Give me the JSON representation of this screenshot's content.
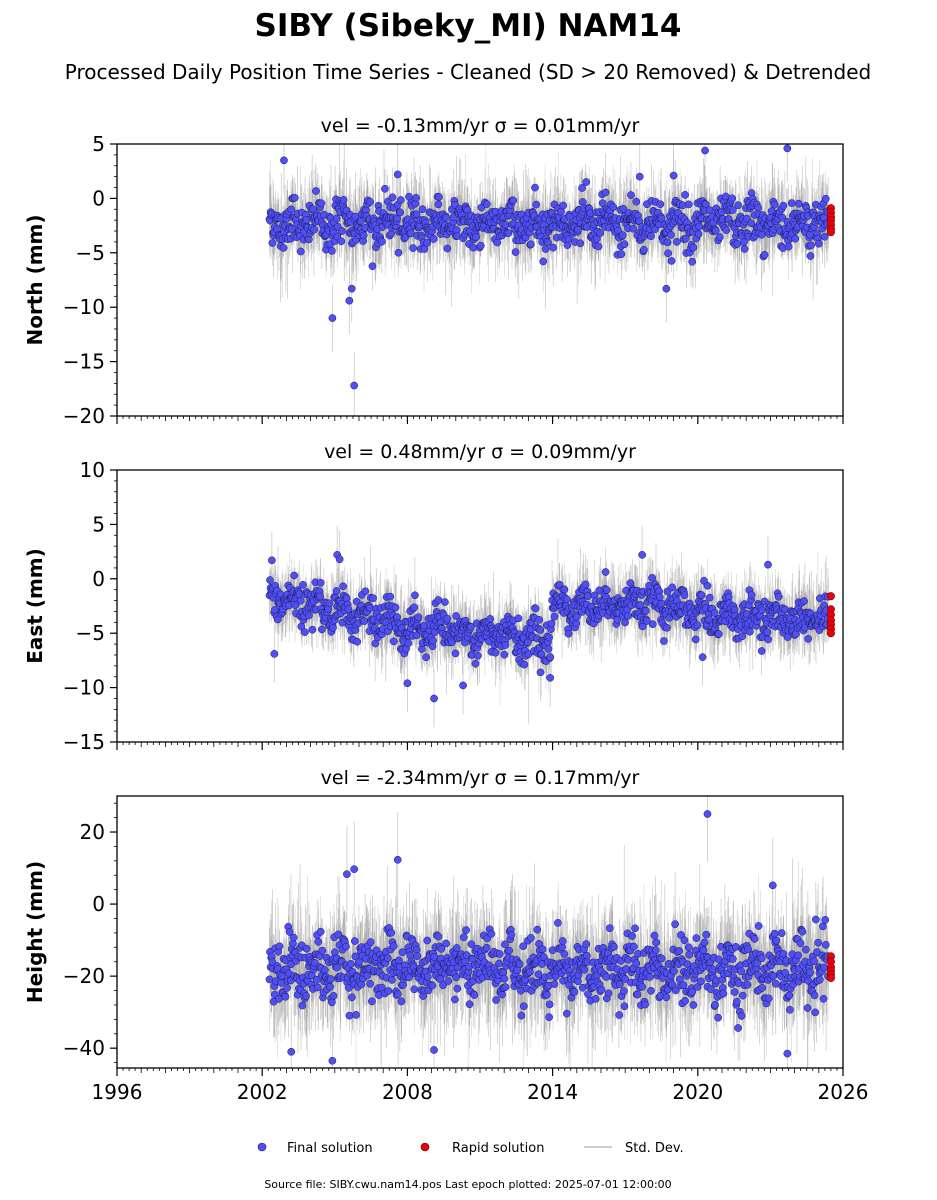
{
  "title": "SIBY (Sibeky_MI) NAM14",
  "subtitle": "Processed Daily Position Time Series - Cleaned (SD > 20 Removed) & Detrended",
  "footer": "Source file: SIBY.cwu.nam14.pos  Last epoch plotted: 2025-07-01 12:00:00",
  "legend": {
    "placement": "bottom-center",
    "entries": [
      {
        "label": "Final solution",
        "color": "#4f4ff5"
      },
      {
        "label": "Rapid solution",
        "color": "#e8000b"
      },
      {
        "label": "Std. Dev.",
        "color": "#bdbdbd"
      }
    ]
  },
  "colors": {
    "final": "#4f4ff5",
    "final_edge": "#1a1a4d",
    "rapid": "#e8000b",
    "sd": "#bdbdbd"
  },
  "chart_data": [
    {
      "type": "scatter",
      "panel": "north",
      "ylabel": "North (mm)",
      "annotation": "vel = -0.13mm/yr   σ = 0.01mm/yr",
      "xlim": [
        1996,
        2026
      ],
      "ylim": [
        -20,
        5
      ],
      "yticks": [
        5,
        0,
        -5,
        -10,
        -15,
        -20
      ],
      "xticks": [
        1996,
        2002,
        2008,
        2014,
        2020,
        2026
      ],
      "data_start": 2002.3,
      "data_end": 2025.4,
      "typical_mean": -2.3,
      "typical_spread": 1.4,
      "outliers": [
        [
          2002.9,
          3.5
        ],
        [
          2004.9,
          -11
        ],
        [
          2005.6,
          -9.4
        ],
        [
          2005.7,
          -8.3
        ],
        [
          2005.8,
          -17.2
        ],
        [
          2018.7,
          -8.3
        ],
        [
          2020.3,
          4.4
        ],
        [
          2023.7,
          4.6
        ],
        [
          2007.6,
          2.2
        ],
        [
          2017.6,
          2.0
        ],
        [
          2019.0,
          2.1
        ]
      ],
      "rapid": {
        "x": 2025.5,
        "values": [
          -0.9,
          -1.3,
          -1.7,
          -2.0,
          -2.4,
          -2.8,
          -3.1
        ]
      }
    },
    {
      "type": "scatter",
      "panel": "east",
      "ylabel": "East (mm)",
      "annotation": "vel = 0.48mm/yr   σ = 0.09mm/yr",
      "xlim": [
        1996,
        2026
      ],
      "ylim": [
        -15,
        10
      ],
      "yticks": [
        10,
        5,
        0,
        -5,
        -10,
        -15
      ],
      "xticks": [
        1996,
        2002,
        2008,
        2014,
        2020,
        2026
      ],
      "data_start": 2002.3,
      "data_end": 2025.4,
      "trend_segments": [
        [
          2002.3,
          -1.8
        ],
        [
          2005.5,
          -3.0
        ],
        [
          2008.0,
          -4.6
        ],
        [
          2011.0,
          -5.2
        ],
        [
          2013.9,
          -5.6
        ],
        [
          2014.0,
          -2.6
        ],
        [
          2017.0,
          -2.2
        ],
        [
          2020.0,
          -3.1
        ],
        [
          2022.0,
          -3.6
        ],
        [
          2025.4,
          -3.4
        ]
      ],
      "typical_spread": 1.2,
      "outliers": [
        [
          2002.4,
          1.7
        ],
        [
          2002.5,
          -6.9
        ],
        [
          2005.1,
          2.2
        ],
        [
          2005.2,
          1.8
        ],
        [
          2008.0,
          -9.6
        ],
        [
          2009.1,
          -11
        ],
        [
          2010.3,
          -9.8
        ],
        [
          2013.9,
          -9.1
        ],
        [
          2017.7,
          2.2
        ],
        [
          2022.9,
          1.3
        ],
        [
          2020.2,
          -7.2
        ],
        [
          2013.5,
          -8.6
        ]
      ],
      "rapid": {
        "x": 2025.5,
        "values": [
          -1.6,
          -2.8,
          -3.3,
          -3.8,
          -4.2,
          -4.6,
          -5.0
        ]
      }
    },
    {
      "type": "scatter",
      "panel": "height",
      "ylabel": "Height (mm)",
      "annotation": "vel = -2.34mm/yr   σ = 0.17mm/yr",
      "xlim": [
        1996,
        2026
      ],
      "ylim": [
        -45.5,
        30
      ],
      "yticks": [
        20,
        0,
        -20,
        -40
      ],
      "xticks": [
        1996,
        2002,
        2008,
        2014,
        2020,
        2026
      ],
      "xticklabels": [
        "1996",
        "2002",
        "2008",
        "2014",
        "2020",
        "2026"
      ],
      "data_start": 2002.3,
      "data_end": 2025.4,
      "typical_mean": -18,
      "typical_spread": 6,
      "outliers": [
        [
          2020.4,
          25
        ],
        [
          2007.6,
          12.3
        ],
        [
          2005.8,
          9.7
        ],
        [
          2005.5,
          8.3
        ],
        [
          2004.9,
          -43.5
        ],
        [
          2023.7,
          -41.5
        ],
        [
          2003.2,
          -41
        ],
        [
          2009.1,
          -40.5
        ],
        [
          2023.1,
          5.2
        ]
      ],
      "rapid": {
        "x": 2025.5,
        "values": [
          -14.5,
          -16,
          -17.5,
          -18.5,
          -19.5,
          -20.5
        ]
      }
    }
  ]
}
